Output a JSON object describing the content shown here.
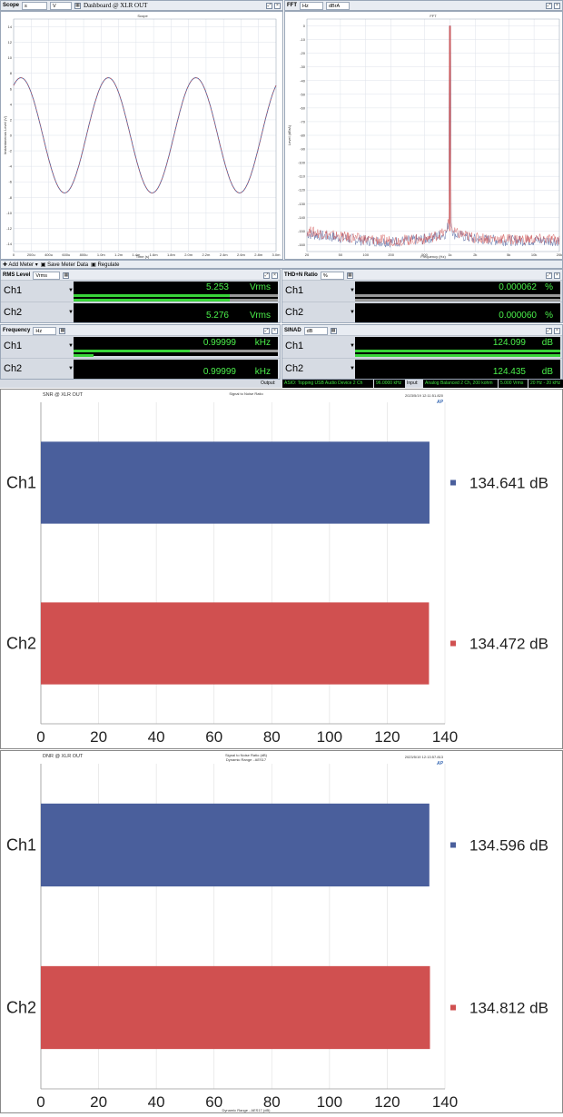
{
  "scope": {
    "title": "Dashboard @ XLR OUT",
    "label": "Scope",
    "x_unit": "s",
    "y_unit": "V",
    "plot_title": "Scope",
    "ylabel": "Instantaneous Level (V)",
    "xlabel": "Time (s)",
    "y_ticks": [
      "14",
      "12",
      "10",
      "8",
      "6",
      "4",
      "2",
      "0",
      "-2",
      "-4",
      "-6",
      "-8",
      "-10",
      "-12",
      "-14"
    ],
    "x_ticks": [
      "0",
      "200u",
      "400u",
      "600u",
      "800u",
      "1.0m",
      "1.2m",
      "1.4m",
      "1.6m",
      "1.8m",
      "2.0m",
      "2.2m",
      "2.4m",
      "2.6m",
      "2.8m",
      "3.0m"
    ]
  },
  "fft": {
    "label": "FFT",
    "x_unit": "Hz",
    "y_unit": "dBrA",
    "plot_title": "FFT",
    "ylabel": "Level (dBrA)",
    "xlabel": "Frequency (Hz)",
    "y_ticks": [
      "0",
      "-10",
      "-20",
      "-30",
      "-40",
      "-50",
      "-60",
      "-70",
      "-80",
      "-90",
      "-100",
      "-110",
      "-120",
      "-130",
      "-140",
      "-150",
      "-160"
    ],
    "x_ticks": [
      "20",
      "50",
      "100",
      "200",
      "500",
      "1k",
      "2k",
      "5k",
      "10k",
      "20k"
    ]
  },
  "toolbar": {
    "add_meter": "Add Meter",
    "save_meter": "Save Meter Data",
    "regulate": "Regulate"
  },
  "meters": {
    "rms": {
      "label": "RMS Level",
      "unit_select": "Vrms",
      "ch1": "5.253",
      "ch2": "5.276",
      "unit": "Vrms",
      "ch1_label": "Ch1",
      "ch2_label": "Ch2"
    },
    "thd": {
      "label": "THD+N Ratio",
      "unit_select": "%",
      "ch1": "0.000062",
      "ch2": "0.000060",
      "unit": "%",
      "ch1_label": "Ch1",
      "ch2_label": "Ch2"
    },
    "freq": {
      "label": "Frequency",
      "unit_select": "Hz",
      "ch1": "0.99999",
      "ch2": "0.99999",
      "unit": "kHz",
      "ch1_label": "Ch1",
      "ch2_label": "Ch2"
    },
    "sinad": {
      "label": "SINAD",
      "unit_select": "dB",
      "ch1": "124.099",
      "ch2": "124.435",
      "unit": "dB",
      "ch1_label": "Ch1",
      "ch2_label": "Ch2"
    }
  },
  "status": {
    "output_label": "Output:",
    "output": "ASIO: Topping USB Audio Device 2 Ch",
    "rate": "96.0000 kHz",
    "input_label": "Input:",
    "input": "Analog Balanced 2 Ch, 200 kohm",
    "level": "5.000 Vrms",
    "bw": "20 Hz - 20 kHz"
  },
  "snr_chart": {
    "header": "SNR @ XLR OUT",
    "subtitle": "Signal to Noise Ratio",
    "timestamp": "2023/5/19 12:11:51.820",
    "ap": "AP"
  },
  "dnr_chart": {
    "header": "DNR @ XLR OUT",
    "subtitle1": "Signal to Noise Ratio (dB)",
    "subtitle2": "Dynamic Range - AES17",
    "timestamp": "2023/5/19 12:13:57.813",
    "footer": "Dynamic Range - AES17 (dB)",
    "ap": "AP"
  },
  "colors": {
    "ch1": "#4a5f9c",
    "ch2": "#d05050",
    "meter_green": "#4bf04b"
  },
  "chart_data": [
    {
      "type": "line",
      "title": "Scope",
      "xlabel": "Time (s)",
      "ylabel": "Instantaneous Level (V)",
      "xlim": [
        0,
        0.003
      ],
      "ylim": [
        -15,
        15
      ],
      "series": [
        {
          "name": "Ch1",
          "frequency_hz": 1000,
          "amplitude": 7.43,
          "phase_deg": 60
        }
      ]
    },
    {
      "type": "line",
      "title": "FFT",
      "xlabel": "Frequency (Hz)",
      "ylabel": "Level (dBrA)",
      "xscale": "log",
      "xlim": [
        20,
        20000
      ],
      "ylim": [
        -165,
        5
      ],
      "series": [
        {
          "name": "Ch1",
          "x": [
            20,
            50,
            100,
            200,
            500,
            900,
            1000,
            1100,
            2000,
            5000,
            10000,
            20000
          ],
          "y": [
            -152,
            -155,
            -157,
            -158,
            -156,
            -152,
            0,
            -152,
            -156,
            -157,
            -157,
            -157
          ]
        },
        {
          "name": "Ch2",
          "x": [
            20,
            50,
            100,
            200,
            500,
            900,
            1000,
            1100,
            2000,
            5000,
            10000,
            20000
          ],
          "y": [
            -150,
            -154,
            -156,
            -157,
            -156,
            -151,
            0,
            -151,
            -155,
            -156,
            -156,
            -156
          ]
        }
      ]
    },
    {
      "type": "bar",
      "orientation": "horizontal",
      "title": "SNR @ XLR OUT",
      "categories": [
        "Ch1",
        "Ch2"
      ],
      "values": [
        134.641,
        134.472
      ],
      "value_labels": [
        "134.641 dB",
        "134.472 dB"
      ],
      "xlim": [
        0,
        140
      ],
      "x_ticks": [
        "0",
        "20",
        "40",
        "60",
        "80",
        "100",
        "120",
        "140"
      ]
    },
    {
      "type": "bar",
      "orientation": "horizontal",
      "title": "DNR @ XLR OUT",
      "categories": [
        "Ch1",
        "Ch2"
      ],
      "values": [
        134.596,
        134.812
      ],
      "value_labels": [
        "134.596 dB",
        "134.812 dB"
      ],
      "xlim": [
        0,
        140
      ],
      "x_ticks": [
        "0",
        "20",
        "40",
        "60",
        "80",
        "100",
        "120",
        "140"
      ]
    }
  ]
}
